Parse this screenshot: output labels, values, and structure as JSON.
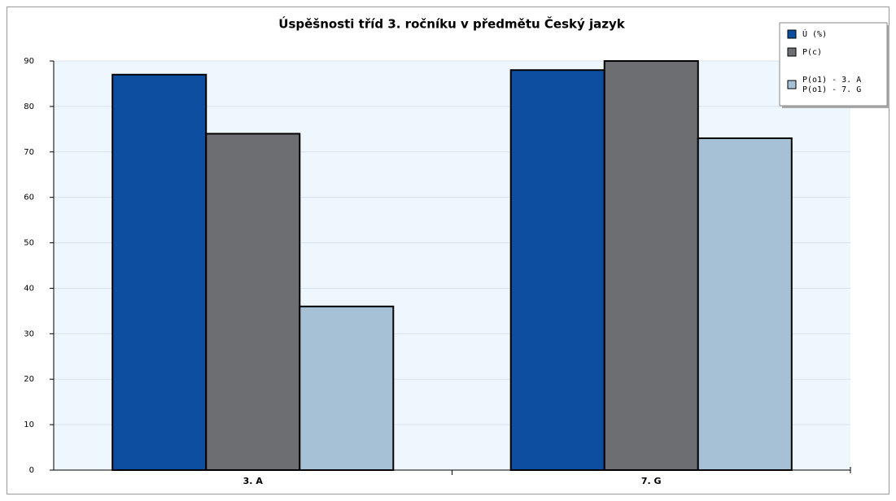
{
  "chart_data": {
    "type": "bar",
    "title": "Úspěšnosti tříd 3. ročníku v předmětu Český jazyk",
    "categories": [
      "3. A",
      "7. G"
    ],
    "series": [
      {
        "name": "Ú (%)",
        "color": "#0d4ea0",
        "values": [
          87,
          88
        ]
      },
      {
        "name": "P(c)",
        "color": "#6d6e71",
        "values": [
          74,
          90
        ]
      },
      {
        "name": [
          "P(o1) - 3. A",
          "P(o1) - 7. G"
        ],
        "color": "#a6c0d6",
        "values": [
          36,
          73
        ]
      }
    ],
    "ylim": [
      0,
      90
    ],
    "yticks": [
      0,
      10,
      20,
      30,
      40,
      50,
      60,
      70,
      80,
      90
    ],
    "grid": true,
    "legend": "top-right"
  }
}
